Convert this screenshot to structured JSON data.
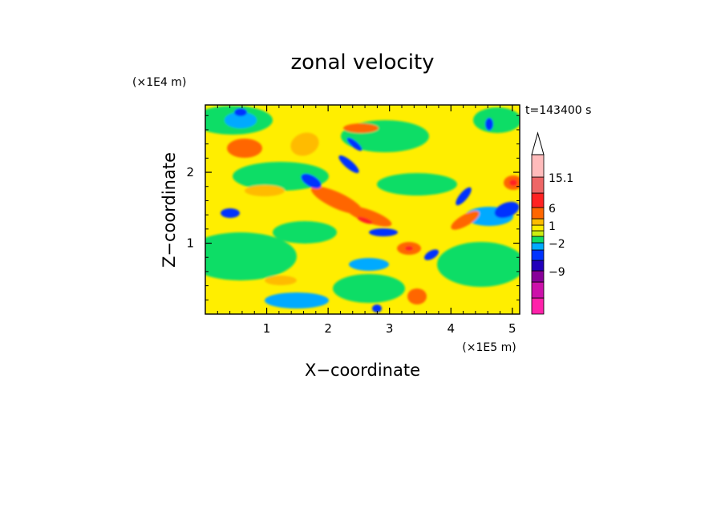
{
  "chart_data": {
    "type": "heatmap",
    "title": "zonal velocity",
    "xlabel": "X−coordinate",
    "ylabel": "Z−coordinate",
    "x_multiplier": "(×1E5 m)",
    "y_multiplier": "(×1E4 m)",
    "time_label": "t=143400 s",
    "xlim": [
      0,
      5.12
    ],
    "ylim": [
      0,
      2.95
    ],
    "x_ticks": [
      "1",
      "2",
      "3",
      "4",
      "5"
    ],
    "x_tick_values": [
      1,
      2,
      3,
      4,
      5
    ],
    "y_ticks": [
      "1",
      "2"
    ],
    "y_tick_values": [
      1,
      2
    ],
    "colorbar": {
      "colors": [
        "#ff22aa",
        "#cc11aa",
        "#880099",
        "#2200bb",
        "#0033ff",
        "#00aaff",
        "#11dd66",
        "#ccee11",
        "#ffee00",
        "#ffbb00",
        "#ff6600",
        "#ff2222",
        "#ee6666",
        "#ffbbbb",
        "#ffffff"
      ],
      "labels": [
        "15.1",
        "6",
        "1",
        "−2",
        "−9"
      ]
    },
    "features": [
      {
        "kind": "negative-blob",
        "x": 0.45,
        "z": 1.45,
        "value": -10
      },
      {
        "kind": "positive-blob",
        "x": 0.6,
        "z": 2.4,
        "value": 6
      },
      {
        "kind": "negative-blob",
        "x": 1.8,
        "z": 1.85,
        "value": -12
      },
      {
        "kind": "negative-blob",
        "x": 2.4,
        "z": 2.4,
        "value": -12
      },
      {
        "kind": "positive-blob",
        "x": 2.3,
        "z": 1.4,
        "value": 8
      },
      {
        "kind": "negative-blob",
        "x": 2.75,
        "z": 1.15,
        "value": -12
      },
      {
        "kind": "negative-blob",
        "x": 4.1,
        "z": 1.6,
        "value": -12
      },
      {
        "kind": "negative-blob",
        "x": 4.8,
        "z": 1.5,
        "value": -12
      },
      {
        "kind": "positive-blob",
        "x": 4.95,
        "z": 1.9,
        "value": 10
      }
    ]
  }
}
